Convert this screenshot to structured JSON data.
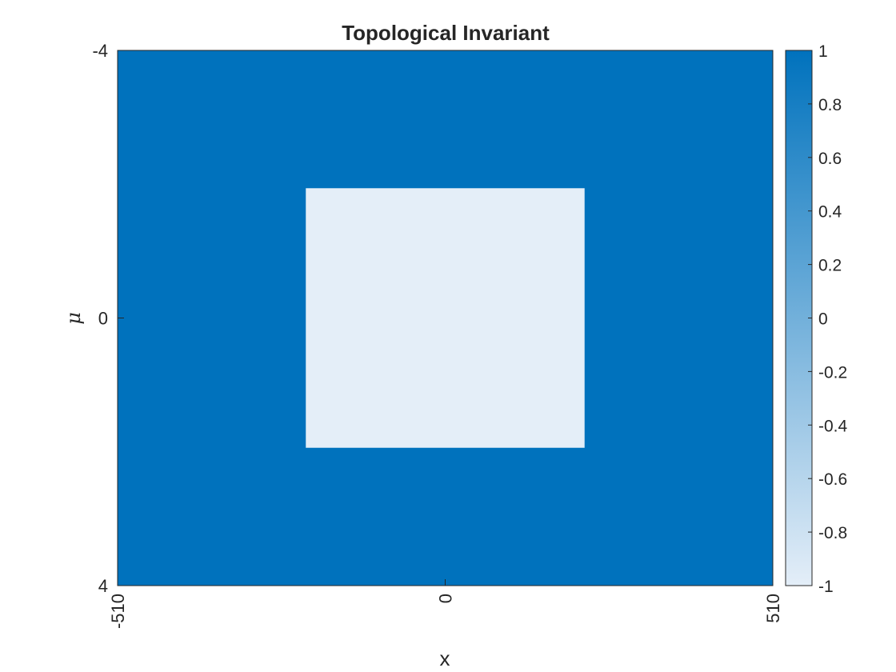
{
  "chart_data": {
    "type": "heatmap",
    "title": "Topological Invariant",
    "xlabel": "x",
    "ylabel": "μ",
    "xlim": [
      -510,
      510
    ],
    "ylim": [
      -4,
      4
    ],
    "y_direction": "reversed",
    "x_ticks": [
      "-510",
      "0",
      "510"
    ],
    "y_ticks": [
      "-4",
      "0",
      "4"
    ],
    "regions": [
      {
        "x_range": [
          -510,
          510
        ],
        "y_range": [
          -4,
          4
        ],
        "value": 1
      },
      {
        "x_range": [
          -217,
          217
        ],
        "y_range": [
          -1.94,
          1.94
        ],
        "value": -1
      }
    ],
    "colorbar": {
      "range": [
        -1,
        1
      ],
      "ticks": [
        "1",
        "0.8",
        "0.6",
        "0.4",
        "0.2",
        "0",
        "-0.2",
        "-0.4",
        "-0.6",
        "-0.8",
        "-1"
      ],
      "tick_values": [
        1,
        0.8,
        0.6,
        0.4,
        0.2,
        0,
        -0.2,
        -0.4,
        -0.6,
        -0.8,
        -1
      ],
      "color_low": "#e4eef8",
      "color_high": "#0072bd"
    },
    "grid": false
  }
}
